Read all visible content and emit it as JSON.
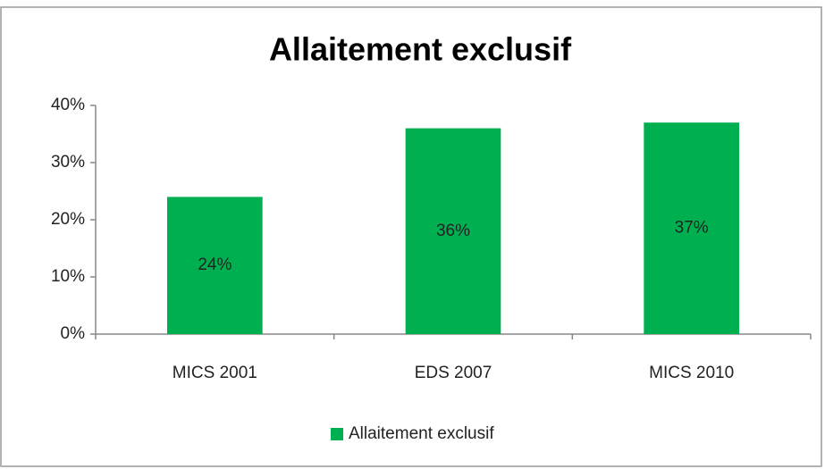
{
  "chart_data": {
    "type": "bar",
    "title": "Allaitement exclusif",
    "categories": [
      "MICS 2001",
      "EDS 2007",
      "MICS 2010"
    ],
    "series": [
      {
        "name": "Allaitement exclusif",
        "color": "#00b050",
        "values": [
          24,
          36,
          37
        ],
        "value_labels": [
          "24%",
          "36%",
          "37%"
        ]
      }
    ],
    "ylim": [
      0,
      40
    ],
    "yticks": [
      {
        "value": 0,
        "label": "0%"
      },
      {
        "value": 10,
        "label": "10%"
      },
      {
        "value": 20,
        "label": "20%"
      },
      {
        "value": 30,
        "label": "30%"
      },
      {
        "value": 40,
        "label": "40%"
      }
    ],
    "grid": false,
    "legend": "bottom"
  }
}
